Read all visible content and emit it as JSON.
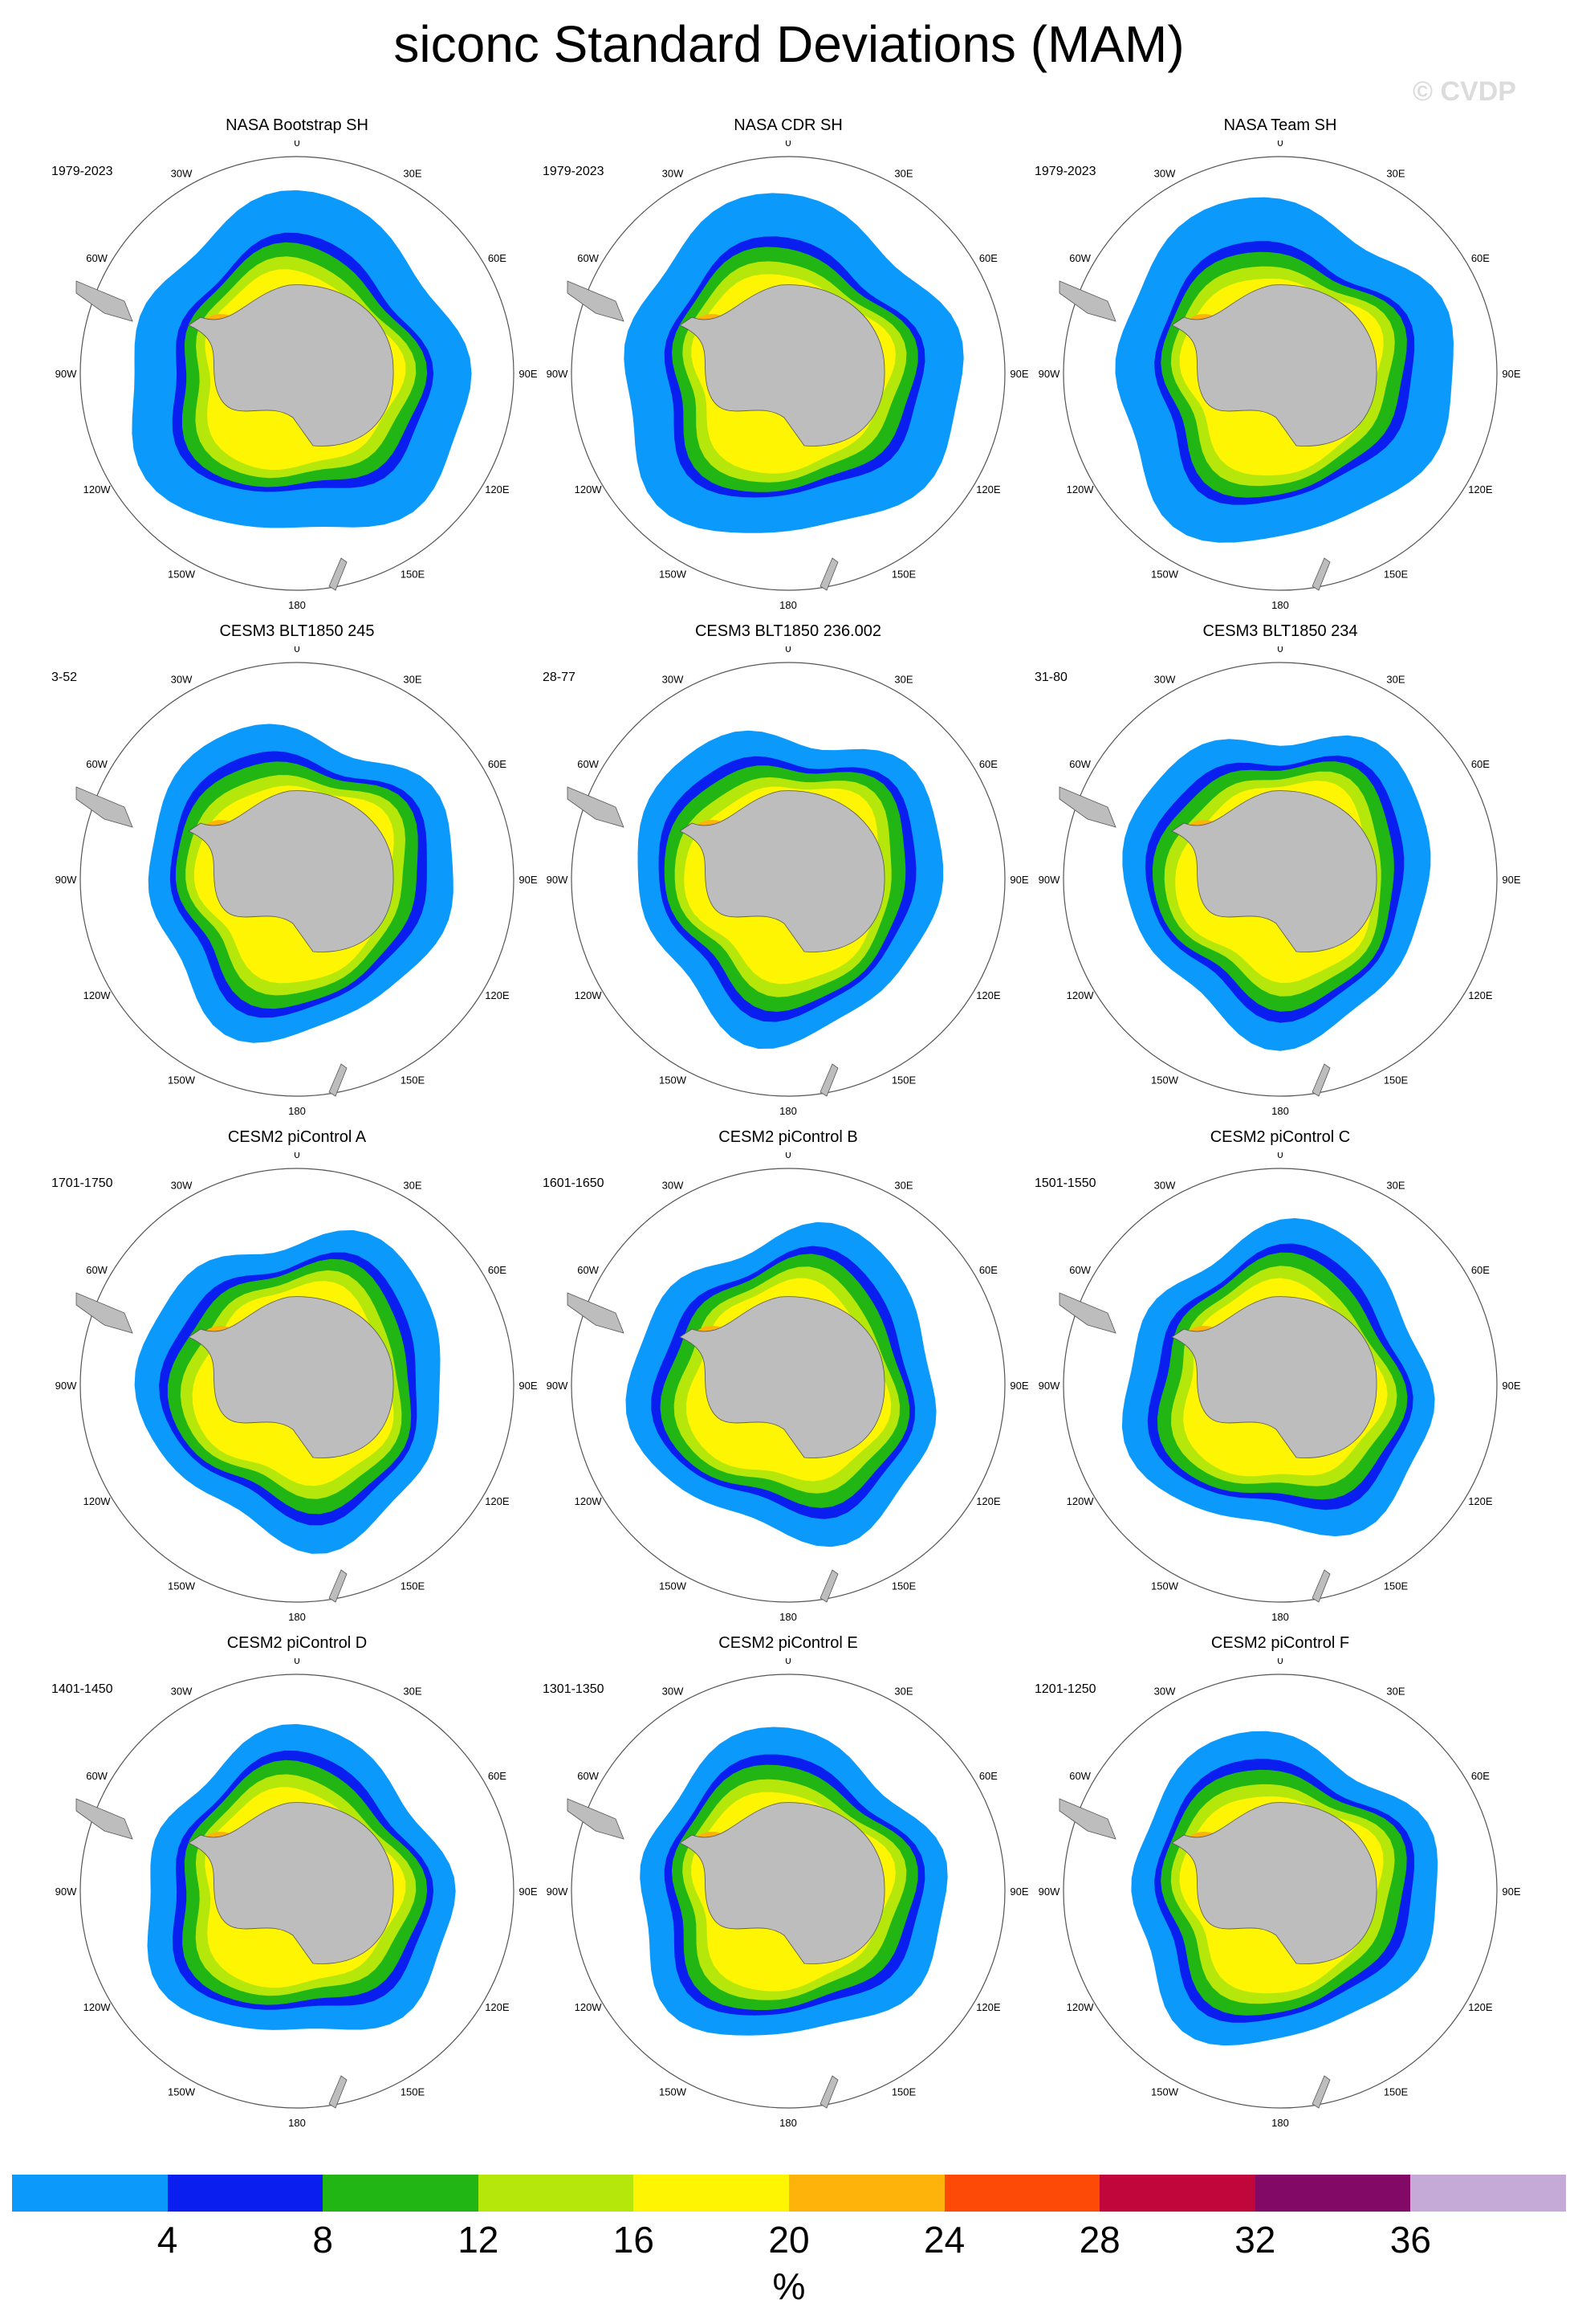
{
  "title": "siconc Standard Deviations (MAM)",
  "watermark": "© CVDP",
  "units": "%",
  "colorbar": {
    "colors": [
      "#0b9afc",
      "#0a1ef0",
      "#21b613",
      "#b5e80a",
      "#fdf501",
      "#fdb30a",
      "#fd4a07",
      "#c0063a",
      "#820a66",
      "#c5a9d6"
    ],
    "ticks": [
      "4",
      "8",
      "12",
      "16",
      "20",
      "24",
      "28",
      "32",
      "36"
    ]
  },
  "lon_labels": [
    "0",
    "30E",
    "60E",
    "90E",
    "120E",
    "150E",
    "180",
    "150W",
    "120W",
    "90W",
    "60W",
    "30W"
  ],
  "panels": [
    {
      "title": "NASA Bootstrap SH",
      "period": "1979-2023"
    },
    {
      "title": "NASA CDR SH",
      "period": "1979-2023"
    },
    {
      "title": "NASA Team SH",
      "period": "1979-2023"
    },
    {
      "title": "CESM3 BLT1850 245",
      "period": "3-52"
    },
    {
      "title": "CESM3 BLT1850 236.002",
      "period": "28-77"
    },
    {
      "title": "CESM3 BLT1850 234",
      "period": "31-80"
    },
    {
      "title": "CESM2 piControl A",
      "period": "1701-1750"
    },
    {
      "title": "CESM2 piControl B",
      "period": "1601-1650"
    },
    {
      "title": "CESM2 piControl C",
      "period": "1501-1550"
    },
    {
      "title": "CESM2 piControl D",
      "period": "1401-1450"
    },
    {
      "title": "CESM2 piControl E",
      "period": "1301-1350"
    },
    {
      "title": "CESM2 piControl F",
      "period": "1201-1250"
    }
  ]
}
